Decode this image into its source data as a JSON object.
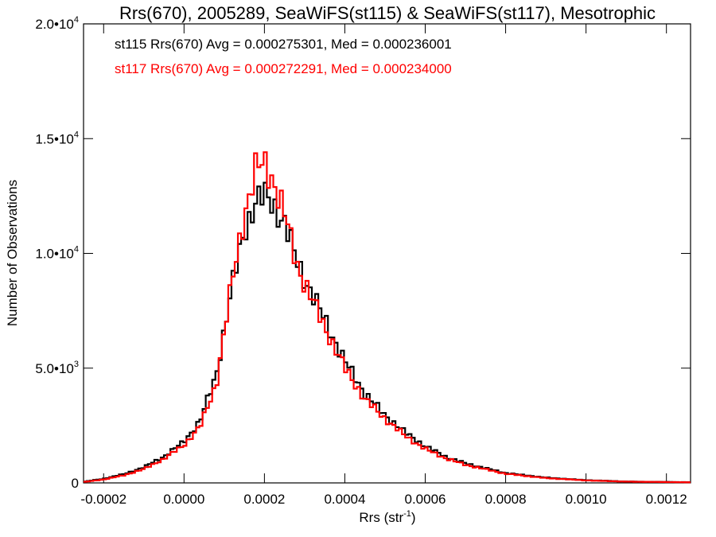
{
  "chart_data": {
    "type": "histogram-step",
    "title": "Rrs(670), 2005289, SeaWiFS(st115) & SeaWiFS(st117), Mesotrophic",
    "xlabel": "Rrs (str",
    "xlabel_sup": "-1",
    "xlabel_close": ")",
    "ylabel": "Number of Observations",
    "xlim": [
      -0.00025,
      0.00126
    ],
    "ylim": [
      0,
      20000
    ],
    "x_ticks": [
      -0.0002,
      0.0,
      0.0002,
      0.0004,
      0.0006,
      0.0008,
      0.001,
      0.0012
    ],
    "x_tick_labels": [
      "-0.0002",
      "0.0000",
      "0.0002",
      "0.0004",
      "0.0006",
      "0.0008",
      "0.0010",
      "0.0012"
    ],
    "y_ticks": [
      0,
      5000,
      10000,
      15000,
      20000
    ],
    "y_tick_labels": [
      {
        "base": "0",
        "exp": ""
      },
      {
        "base": "5.0•10",
        "exp": "3"
      },
      {
        "base": "1.0•10",
        "exp": "4"
      },
      {
        "base": "1.5•10",
        "exp": "4"
      },
      {
        "base": "2.0•10",
        "exp": "4"
      }
    ],
    "grid": false,
    "series": [
      {
        "name": "st115",
        "color": "#000000",
        "stats_label": "st115 Rrs(670) Avg = 0.000275301, Med = 0.000236001",
        "points": [
          [
            -0.00025,
            50
          ],
          [
            -0.0002,
            180
          ],
          [
            -0.00015,
            380
          ],
          [
            -0.0001,
            680
          ],
          [
            -5e-05,
            1150
          ],
          [
            0.0,
            1800
          ],
          [
            4e-05,
            2700
          ],
          [
            8e-05,
            4700
          ],
          [
            0.00012,
            8600
          ],
          [
            0.00015,
            11000
          ],
          [
            0.00018,
            12300
          ],
          [
            0.0002,
            12500
          ],
          [
            0.00022,
            12200
          ],
          [
            0.00025,
            11300
          ],
          [
            0.00028,
            9700
          ],
          [
            0.0003,
            8900
          ],
          [
            0.00035,
            7100
          ],
          [
            0.0004,
            5300
          ],
          [
            0.00045,
            3900
          ],
          [
            0.0005,
            2950
          ],
          [
            0.00055,
            2200
          ],
          [
            0.0006,
            1600
          ],
          [
            0.00065,
            1150
          ],
          [
            0.0007,
            850
          ],
          [
            0.0008,
            430
          ],
          [
            0.0009,
            230
          ],
          [
            0.001,
            120
          ],
          [
            0.0011,
            60
          ],
          [
            0.00126,
            30
          ]
        ]
      },
      {
        "name": "st117",
        "color": "#ff0000",
        "stats_label": "st117 Rrs(670) Avg = 0.000272291, Med = 0.000234000",
        "points": [
          [
            -0.00025,
            40
          ],
          [
            -0.0002,
            150
          ],
          [
            -0.00015,
            330
          ],
          [
            -0.0001,
            600
          ],
          [
            -5e-05,
            1050
          ],
          [
            0.0,
            1650
          ],
          [
            4e-05,
            2450
          ],
          [
            8e-05,
            4300
          ],
          [
            0.00012,
            8800
          ],
          [
            0.00015,
            11700
          ],
          [
            0.00018,
            13700
          ],
          [
            0.0002,
            13900
          ],
          [
            0.00022,
            13300
          ],
          [
            0.00025,
            11700
          ],
          [
            0.00028,
            9600
          ],
          [
            0.0003,
            8700
          ],
          [
            0.00035,
            6800
          ],
          [
            0.0004,
            5000
          ],
          [
            0.00045,
            3650
          ],
          [
            0.0005,
            2800
          ],
          [
            0.00055,
            2050
          ],
          [
            0.0006,
            1480
          ],
          [
            0.00065,
            1080
          ],
          [
            0.0007,
            790
          ],
          [
            0.0008,
            400
          ],
          [
            0.0009,
            210
          ],
          [
            0.001,
            110
          ],
          [
            0.0011,
            55
          ],
          [
            0.00126,
            25
          ]
        ]
      }
    ]
  }
}
